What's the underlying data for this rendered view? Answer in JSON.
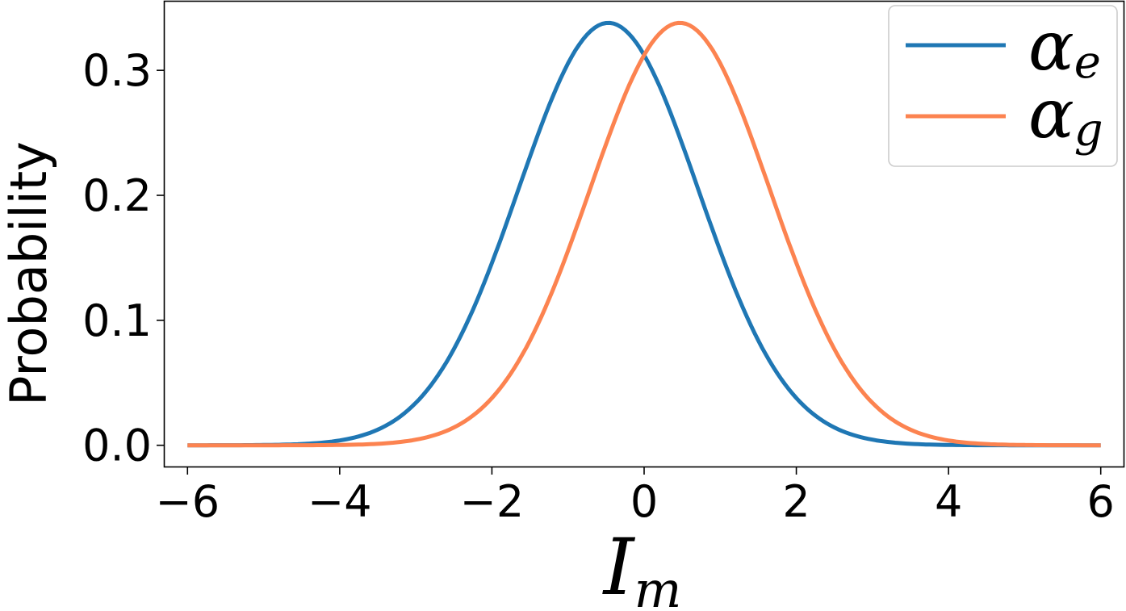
{
  "chart_data": {
    "type": "line",
    "title": "",
    "xlabel": {
      "main": "I",
      "sub": "m"
    },
    "ylabel": "Probability",
    "xlim": [
      -6.3,
      6.3
    ],
    "ylim": [
      -0.017,
      0.355
    ],
    "xticks": [
      -6,
      -4,
      -2,
      0,
      2,
      4,
      6
    ],
    "xtick_labels": [
      "−6",
      "−4",
      "−2",
      "0",
      "2",
      "4",
      "6"
    ],
    "yticks": [
      0.0,
      0.1,
      0.2,
      0.3
    ],
    "ytick_labels": [
      "0.0",
      "0.1",
      "0.2",
      "0.3"
    ],
    "grid": false,
    "legend": {
      "placement": "top-right"
    },
    "series": [
      {
        "name": "αe",
        "name_main": "α",
        "name_sub": "e",
        "color": "#1f77b4",
        "x": [
          -6,
          -5.5,
          -5,
          -4.5,
          -4,
          -3.5,
          -3,
          -2.5,
          -2,
          -1.5,
          -1,
          -0.5,
          0,
          0.5,
          1,
          1.5,
          2,
          2.5,
          3,
          3.5,
          4,
          4.5,
          5,
          5.5,
          6
        ],
        "y": [
          0.0,
          0.0001,
          0.0006,
          0.0022,
          0.0066,
          0.0173,
          0.0397,
          0.0795,
          0.139,
          0.213,
          0.284,
          0.331,
          0.309,
          0.272,
          0.188,
          0.111,
          0.0555,
          0.0236,
          0.0085,
          0.0026,
          0.0007,
          0.0002,
          0.0,
          0.0,
          0.0
        ]
      },
      {
        "name": "αg",
        "name_main": "α",
        "name_sub": "g",
        "color": "#fc8350",
        "x": [
          -6,
          -5.5,
          -5,
          -4.5,
          -4,
          -3.5,
          -3,
          -2.5,
          -2,
          -1.5,
          -1,
          -0.5,
          0,
          0.5,
          1,
          1.5,
          2,
          2.5,
          3,
          3.5,
          4,
          4.5,
          5,
          5.5,
          6
        ],
        "y": [
          0.0,
          0.0,
          0.0,
          0.0002,
          0.0007,
          0.0026,
          0.0085,
          0.0236,
          0.0555,
          0.111,
          0.188,
          0.272,
          0.309,
          0.331,
          0.284,
          0.213,
          0.139,
          0.0795,
          0.0397,
          0.0173,
          0.0066,
          0.0022,
          0.0006,
          0.0001,
          0.0
        ]
      }
    ]
  }
}
